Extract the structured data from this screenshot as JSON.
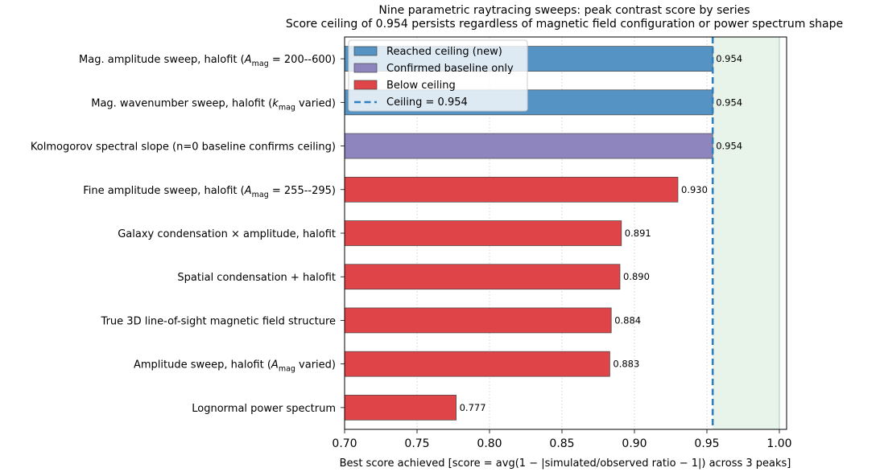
{
  "chart_data": {
    "type": "bar",
    "orientation": "horizontal",
    "title": "Nine parametric raytracing sweeps: peak contrast score by series",
    "subtitle": "Score ceiling of 0.954 persists regardless of magnetic field configuration or power spectrum shape",
    "xlabel": "Best score achieved  [score = avg(1 − |simulated/observed ratio − 1|) across 3 peaks]",
    "ylabel": "",
    "xlim": [
      0.7,
      1.005
    ],
    "xticks": [
      "0.70",
      "0.75",
      "0.80",
      "0.85",
      "0.90",
      "0.95",
      "1.00"
    ],
    "grid": "x-dotted",
    "legend_position": "top-left",
    "ceiling": 0.954,
    "ceiling_shade": [
      0.954,
      1.0
    ],
    "categories": [
      {
        "text": "Lognormal power spectrum"
      },
      {
        "text": "Amplitude sweep, halofit (",
        "sym": "A",
        "sub": "mag",
        "after": " varied)"
      },
      {
        "text": "True 3D line-of-sight magnetic field structure"
      },
      {
        "text": "Spatial condensation + halofit"
      },
      {
        "text": "Galaxy condensation × amplitude, halofit"
      },
      {
        "text": "Fine amplitude sweep, halofit (",
        "sym": "A",
        "sub": "mag",
        "after": " = 255--295)"
      },
      {
        "text": "Kolmogorov spectral slope (n=0 baseline confirms ceiling)"
      },
      {
        "text": "Mag. wavenumber sweep, halofit (",
        "sym": "k",
        "sub": "mag",
        "after": " varied)"
      },
      {
        "text": "Mag. amplitude sweep, halofit (",
        "sym": "A",
        "sub": "mag",
        "after": " = 200--600)"
      }
    ],
    "values": [
      0.777,
      0.883,
      0.884,
      0.89,
      0.891,
      0.93,
      0.954,
      0.954,
      0.954
    ],
    "value_labels": [
      "0.777",
      "0.883",
      "0.884",
      "0.890",
      "0.891",
      "0.930",
      "0.954",
      "0.954",
      "0.954"
    ],
    "groups": [
      "below",
      "below",
      "below",
      "below",
      "below",
      "below",
      "baseline",
      "reached",
      "reached"
    ],
    "legend": [
      {
        "key": "reached",
        "label": "Reached ceiling (new)",
        "type": "patch"
      },
      {
        "key": "baseline",
        "label": "Confirmed baseline only",
        "type": "patch"
      },
      {
        "key": "below",
        "label": "Below ceiling",
        "type": "patch"
      },
      {
        "key": "ceiling",
        "label": "Ceiling = 0.954",
        "type": "dashed-line"
      }
    ],
    "colors": {
      "reached": "#5593c4",
      "baseline": "#8e85bf",
      "below": "#de4448",
      "ceiling": "#2e7fc0",
      "shade": "#e8f4ea",
      "grid": "#c8c8c8"
    }
  }
}
